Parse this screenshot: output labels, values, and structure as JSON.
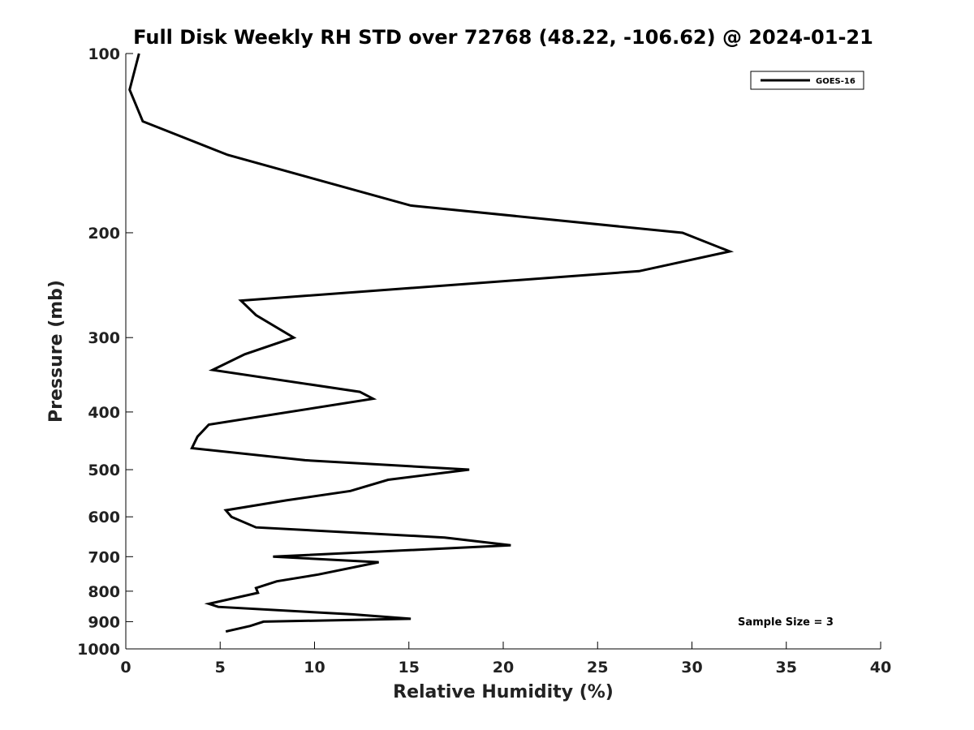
{
  "chart_data": {
    "type": "line",
    "title": "Full Disk Weekly RH STD over 72768 (48.22, -106.62) @ 2024-01-21",
    "xlabel": "Relative Humidity (%)",
    "ylabel": "Pressure (mb)",
    "xlim": [
      0,
      40
    ],
    "ylim": [
      1000,
      100
    ],
    "y_scale": "log",
    "y_inverted": true,
    "x_ticks": [
      "0",
      "5",
      "10",
      "15",
      "20",
      "25",
      "30",
      "35",
      "40"
    ],
    "y_ticks": [
      "100",
      "200",
      "300",
      "400",
      "500",
      "600",
      "700",
      "800",
      "900",
      "1000"
    ],
    "grid": false,
    "legend_position": "top-right",
    "annotation": "Sample Size = 3",
    "series": [
      {
        "name": "GOES-16",
        "color": "#000000",
        "x": [
          0.7,
          0.2,
          0.9,
          5.4,
          15.1,
          29.5,
          32.0,
          27.2,
          6.1,
          6.9,
          8.9,
          6.3,
          4.6,
          12.4,
          13.1,
          4.4,
          3.8,
          3.5,
          9.5,
          18.2,
          13.9,
          11.9,
          8.5,
          5.3,
          5.6,
          6.9,
          16.9,
          20.4,
          7.8,
          13.4,
          10.2,
          8.0,
          6.9,
          7.0,
          4.4,
          4.9,
          12.0,
          15.1,
          7.3,
          6.6,
          5.3
        ],
        "y": [
          100,
          115,
          130,
          148,
          180,
          200,
          215,
          232,
          260,
          275,
          300,
          320,
          340,
          370,
          380,
          420,
          440,
          460,
          482,
          500,
          520,
          543,
          563,
          585,
          600,
          625,
          650,
          670,
          700,
          715,
          750,
          770,
          790,
          805,
          840,
          850,
          875,
          890,
          900,
          915,
          935
        ]
      }
    ]
  }
}
